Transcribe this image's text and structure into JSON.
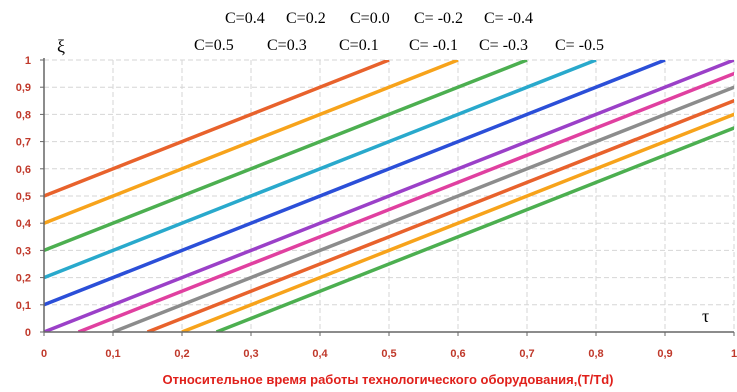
{
  "chart_data": {
    "type": "line",
    "title": "",
    "xlabel": "Относительное время работы технологического оборудования,(T/Td)",
    "ylabel": "ξ",
    "x_axis_symbol": "τ",
    "xlim": [
      0,
      1
    ],
    "ylim": [
      0,
      1
    ],
    "x_ticks": [
      "0",
      "0,1",
      "0,2",
      "0,3",
      "0,4",
      "0,5",
      "0,6",
      "0,7",
      "0,8",
      "0,9",
      "1"
    ],
    "y_ticks": [
      "0",
      "0,1",
      "0,2",
      "0,3",
      "0,4",
      "0,5",
      "0,6",
      "0,7",
      "0,8",
      "0,9",
      "1"
    ],
    "grid": true,
    "annotations": {
      "row1": [
        "C=0.4",
        "C=0.2",
        "C=0.0",
        "C= -0.2",
        "C= -0.4"
      ],
      "row2": [
        "C=0.5",
        "C=0.3",
        "C=0.1",
        "C= -0.1",
        "C= -0.3",
        "C= -0.5"
      ]
    },
    "series": [
      {
        "c": 0.5,
        "color": "#e8622c",
        "x": [
          0,
          0.5
        ],
        "y": [
          0.5,
          1
        ]
      },
      {
        "c": 0.4,
        "color": "#f7a31b",
        "x": [
          0,
          0.6
        ],
        "y": [
          0.4,
          1
        ]
      },
      {
        "c": 0.3,
        "color": "#4caf50",
        "x": [
          0,
          0.7
        ],
        "y": [
          0.3,
          1
        ]
      },
      {
        "c": 0.2,
        "color": "#29a9cc",
        "x": [
          0,
          0.8
        ],
        "y": [
          0.2,
          1
        ]
      },
      {
        "c": 0.1,
        "color": "#2b4fd8",
        "x": [
          0,
          0.9
        ],
        "y": [
          0.1,
          1
        ]
      },
      {
        "c": 0.0,
        "color": "#9b40c8",
        "x": [
          0,
          1.0
        ],
        "y": [
          0.0,
          1
        ]
      },
      {
        "c": -0.1,
        "color": "#e040a0",
        "x": [
          0.05,
          1.05
        ],
        "y": [
          0.0,
          1
        ]
      },
      {
        "c": -0.2,
        "color": "#8c8c8c",
        "x": [
          0.1,
          1.1
        ],
        "y": [
          0.0,
          1
        ]
      },
      {
        "c": -0.3,
        "color": "#e8622c",
        "x": [
          0.15,
          1.15
        ],
        "y": [
          0.0,
          1
        ]
      },
      {
        "c": -0.4,
        "color": "#f7a31b",
        "x": [
          0.2,
          1.2
        ],
        "y": [
          0.0,
          1
        ]
      },
      {
        "c": -0.5,
        "color": "#4caf50",
        "x": [
          0.25,
          1.25
        ],
        "y": [
          0.0,
          1
        ]
      }
    ]
  }
}
